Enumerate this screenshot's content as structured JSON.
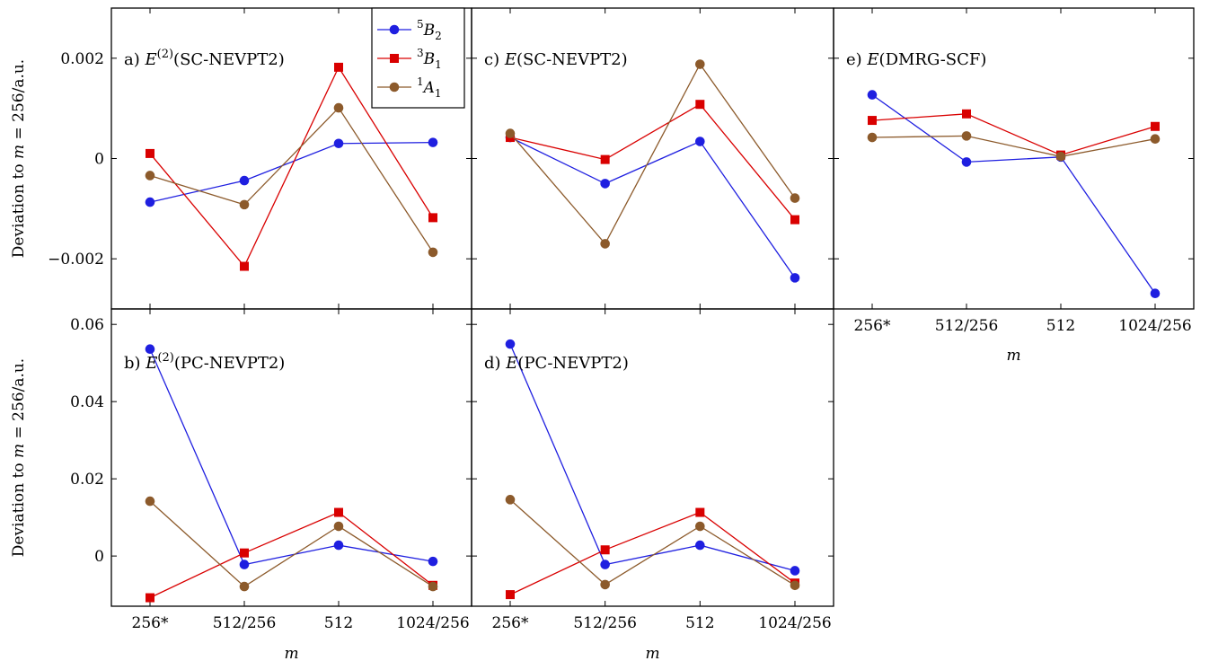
{
  "chart_data": {
    "type": "line",
    "categories": [
      "256*",
      "512/256",
      "512",
      "1024/256"
    ],
    "xlabel": "m",
    "ylabel": "Deviation to m = 256/a.u.",
    "legend": {
      "placement": "top-left of panel c",
      "entries": [
        {
          "sup": "5",
          "main": "B",
          "sub": "2",
          "color": "#1f1fe0",
          "marker": "circle"
        },
        {
          "sup": "3",
          "main": "B",
          "sub": "1",
          "color": "#d90000",
          "marker": "square"
        },
        {
          "sup": "1",
          "main": "A",
          "sub": "1",
          "color": "#8c5a2b",
          "marker": "circle"
        }
      ]
    },
    "rows": [
      {
        "ylim": [
          -0.003,
          0.003
        ],
        "yticks": [
          -0.002,
          0,
          0.002
        ],
        "ytick_labels": [
          "−0.002",
          "0",
          "0.002"
        ]
      },
      {
        "ylim": [
          -0.013,
          0.064
        ],
        "yticks": [
          0,
          0.02,
          0.04,
          0.06
        ],
        "ytick_labels": [
          "0",
          "0.02",
          "0.04",
          "0.06"
        ]
      }
    ],
    "panels": [
      {
        "id": "a",
        "row": 0,
        "col": 0,
        "label": {
          "prefix": "a)",
          "sym": "E",
          "sup": "(2)",
          "rest": "(SC-NEVPT2)"
        },
        "series": [
          {
            "key": "5B2",
            "values": [
              -0.00087,
              -0.00044,
              0.0003,
              0.00032
            ]
          },
          {
            "key": "3B1",
            "values": [
              0.0001,
              -0.00215,
              0.00182,
              -0.00118
            ]
          },
          {
            "key": "1A1",
            "values": [
              -0.00034,
              -0.00092,
              0.00101,
              -0.00187
            ]
          }
        ]
      },
      {
        "id": "c",
        "row": 0,
        "col": 1,
        "label": {
          "prefix": "c)",
          "sym": "E",
          "sup": "",
          "rest": "(SC-NEVPT2)"
        },
        "series": [
          {
            "key": "5B2",
            "values": [
              0.00042,
              -0.0005,
              0.00034,
              -0.00238
            ]
          },
          {
            "key": "3B1",
            "values": [
              0.00042,
              -2e-05,
              0.00108,
              -0.00122
            ]
          },
          {
            "key": "1A1",
            "values": [
              0.0005,
              -0.0017,
              0.00188,
              -0.00079
            ]
          }
        ]
      },
      {
        "id": "e",
        "row": 0,
        "col": 2,
        "label": {
          "prefix": "e)",
          "sym": "E",
          "sup": "",
          "rest": "(DMRG-SCF)"
        },
        "series": [
          {
            "key": "5B2",
            "values": [
              0.00127,
              -7e-05,
              3e-05,
              -0.00269
            ]
          },
          {
            "key": "3B1",
            "values": [
              0.00076,
              0.00089,
              7e-05,
              0.00064
            ]
          },
          {
            "key": "1A1",
            "values": [
              0.00042,
              0.00045,
              4e-05,
              0.00039
            ]
          }
        ]
      },
      {
        "id": "b",
        "row": 1,
        "col": 0,
        "label": {
          "prefix": "b)",
          "sym": "E",
          "sup": "(2)",
          "rest": "(PC-NEVPT2)"
        },
        "series": [
          {
            "key": "5B2",
            "values": [
              0.0536,
              -0.0022,
              0.0028,
              -0.0014
            ]
          },
          {
            "key": "3B1",
            "values": [
              -0.0108,
              0.0008,
              0.0113,
              -0.0076
            ]
          },
          {
            "key": "1A1",
            "values": [
              0.0142,
              -0.0079,
              0.0077,
              -0.0079
            ]
          }
        ]
      },
      {
        "id": "d",
        "row": 1,
        "col": 1,
        "label": {
          "prefix": "d)",
          "sym": "E",
          "sup": "",
          "rest": "(PC-NEVPT2)"
        },
        "series": [
          {
            "key": "5B2",
            "values": [
              0.0549,
              -0.0022,
              0.0028,
              -0.0038
            ]
          },
          {
            "key": "3B1",
            "values": [
              -0.01,
              0.0016,
              0.0113,
              -0.007
            ]
          },
          {
            "key": "1A1",
            "values": [
              0.0146,
              -0.0074,
              0.0077,
              -0.0076
            ]
          }
        ]
      }
    ]
  }
}
